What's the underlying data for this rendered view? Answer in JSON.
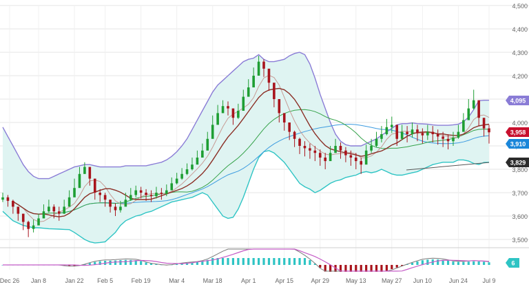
{
  "chart_data": {
    "type": "candlestick",
    "subtype": "bollinger_bands_with_moving_averages_and_macd",
    "y_axis": {
      "ticks": [
        "4,500",
        "4,400",
        "4,300",
        "4,200",
        "4,100",
        "4,000",
        "3,900",
        "3,800",
        "3,700",
        "3,600",
        "3,500"
      ],
      "range": [
        3470,
        4520
      ],
      "side": "right"
    },
    "x_axis": {
      "tick_labels": [
        "Dec 26",
        "Jan 8",
        "Jan 22",
        "Feb 5",
        "Feb 19",
        "Mar 4",
        "Mar 18",
        "Apr 1",
        "Apr 15",
        "Apr 29",
        "May 13",
        "May 27",
        "Jun 10",
        "Jun 24",
        "Jul 9"
      ]
    },
    "grid": true,
    "price_badges": [
      {
        "label": "4,095",
        "value": 4095,
        "color": "#8a7cd6",
        "series": "bollinger_upper"
      },
      {
        "label": "3,958",
        "value": 3958,
        "color": "#c8102e",
        "series": "close"
      },
      {
        "label": "3,910",
        "value": 3910,
        "color": "#1a86d9",
        "series": "moving_average"
      },
      {
        "label": "3,829",
        "value": 3829,
        "color": "#2b2b2b",
        "series": "long_moving_average"
      }
    ],
    "macd_badge": {
      "label": "6",
      "value": 6,
      "color": "#2ec4c4"
    },
    "colors": {
      "up_candle": "#1e9e33",
      "down_candle": "#a8141c",
      "band_line_upper": "#8a7cd6",
      "band_line_lower": "#2ec4c4",
      "band_fill": "#dff4f2",
      "ma_short": "#8b2e25",
      "ma_mid": "#c79b95",
      "ma_green": "#35a24a",
      "ma_blue": "#3c9be0",
      "ma_dark": "#555555"
    },
    "close_series": [
      3680,
      3665,
      3640,
      3610,
      3575,
      3545,
      3560,
      3590,
      3620,
      3640,
      3620,
      3610,
      3640,
      3680,
      3720,
      3780,
      3810,
      3760,
      3700,
      3690,
      3670,
      3640,
      3625,
      3640,
      3670,
      3690,
      3710,
      3700,
      3690,
      3685,
      3700,
      3695,
      3710,
      3740,
      3760,
      3780,
      3800,
      3820,
      3850,
      3880,
      3930,
      3990,
      4040,
      4070,
      4060,
      4020,
      4050,
      4110,
      4150,
      4200,
      4260,
      4230,
      4170,
      4100,
      4040,
      4000,
      3960,
      3930,
      3900,
      3890,
      3880,
      3870,
      3850,
      3835,
      3870,
      3900,
      3880,
      3860,
      3850,
      3835,
      3820,
      3880,
      3900,
      3930,
      3950,
      3980,
      3990,
      3930,
      3960,
      3950,
      3970,
      3955,
      3945,
      3960,
      3950,
      3940,
      3930,
      3920,
      3935,
      3960,
      4010,
      4060,
      4095,
      4020,
      3975,
      3958
    ],
    "high_series": [
      3700,
      3690,
      3670,
      3640,
      3610,
      3580,
      3585,
      3610,
      3650,
      3670,
      3650,
      3640,
      3670,
      3710,
      3760,
      3810,
      3830,
      3790,
      3730,
      3715,
      3700,
      3670,
      3655,
      3665,
      3700,
      3720,
      3730,
      3725,
      3715,
      3710,
      3725,
      3720,
      3735,
      3765,
      3785,
      3805,
      3825,
      3850,
      3880,
      3910,
      3960,
      4030,
      4075,
      4095,
      4090,
      4060,
      4080,
      4140,
      4185,
      4235,
      4285,
      4270,
      4210,
      4140,
      4080,
      4030,
      3995,
      3965,
      3935,
      3920,
      3910,
      3900,
      3885,
      3870,
      3900,
      3930,
      3915,
      3895,
      3880,
      3870,
      3850,
      3905,
      3930,
      3960,
      3985,
      4015,
      4025,
      3970,
      3990,
      3985,
      4000,
      3990,
      3975,
      3990,
      3985,
      3970,
      3960,
      3950,
      3960,
      3990,
      4040,
      4100,
      4140,
      4070,
      4005,
      3990
    ],
    "low_series": [
      3660,
      3640,
      3610,
      3580,
      3540,
      3510,
      3530,
      3565,
      3600,
      3615,
      3590,
      3580,
      3610,
      3650,
      3695,
      3750,
      3780,
      3730,
      3670,
      3660,
      3640,
      3615,
      3600,
      3615,
      3645,
      3665,
      3680,
      3675,
      3665,
      3660,
      3675,
      3670,
      3685,
      3715,
      3735,
      3755,
      3775,
      3795,
      3825,
      3855,
      3900,
      3960,
      4010,
      4040,
      4030,
      3990,
      4015,
      4080,
      4120,
      4165,
      4225,
      4195,
      4135,
      4065,
      4000,
      3965,
      3925,
      3895,
      3865,
      3855,
      3845,
      3835,
      3815,
      3800,
      3840,
      3870,
      3845,
      3830,
      3815,
      3800,
      3780,
      3850,
      3870,
      3895,
      3915,
      3945,
      3955,
      3900,
      3925,
      3915,
      3935,
      3920,
      3910,
      3925,
      3915,
      3905,
      3895,
      3885,
      3900,
      3930,
      3975,
      4025,
      4055,
      3985,
      3940,
      3910
    ],
    "bollinger_upper": [
      3980,
      3940,
      3900,
      3860,
      3820,
      3790,
      3770,
      3760,
      3760,
      3760,
      3770,
      3780,
      3790,
      3800,
      3810,
      3815,
      3820,
      3820,
      3815,
      3810,
      3810,
      3810,
      3810,
      3810,
      3815,
      3815,
      3815,
      3815,
      3815,
      3820,
      3825,
      3830,
      3840,
      3855,
      3875,
      3900,
      3930,
      3970,
      4010,
      4050,
      4090,
      4130,
      4160,
      4180,
      4200,
      4220,
      4240,
      4260,
      4270,
      4275,
      4290,
      4270,
      4260,
      4260,
      4265,
      4270,
      4285,
      4295,
      4300,
      4290,
      4250,
      4190,
      4120,
      4060,
      4000,
      3950,
      3920,
      3905,
      3900,
      3900,
      3900,
      3910,
      3920,
      3930,
      3945,
      3960,
      3975,
      3990,
      3995,
      3995,
      3998,
      3995,
      3994,
      3993,
      3990,
      3988,
      3988,
      3988,
      3990,
      3993,
      4003,
      4023,
      4055,
      4093,
      4095,
      4095
    ],
    "bollinger_lower": [
      3620,
      3600,
      3580,
      3570,
      3560,
      3555,
      3550,
      3550,
      3548,
      3546,
      3545,
      3544,
      3543,
      3542,
      3530,
      3515,
      3500,
      3490,
      3485,
      3487,
      3490,
      3510,
      3530,
      3560,
      3580,
      3590,
      3600,
      3605,
      3615,
      3620,
      3630,
      3640,
      3650,
      3660,
      3665,
      3670,
      3675,
      3680,
      3690,
      3700,
      3690,
      3660,
      3630,
      3600,
      3590,
      3595,
      3630,
      3680,
      3740,
      3800,
      3850,
      3875,
      3880,
      3870,
      3850,
      3830,
      3800,
      3770,
      3740,
      3725,
      3715,
      3700,
      3710,
      3725,
      3740,
      3750,
      3755,
      3765,
      3770,
      3775,
      3785,
      3790,
      3785,
      3790,
      3800,
      3790,
      3780,
      3775,
      3775,
      3780,
      3785,
      3790,
      3800,
      3810,
      3820,
      3825,
      3830,
      3830,
      3830,
      3840,
      3840,
      3835,
      3825,
      3820,
      3829,
      3830
    ]
  }
}
